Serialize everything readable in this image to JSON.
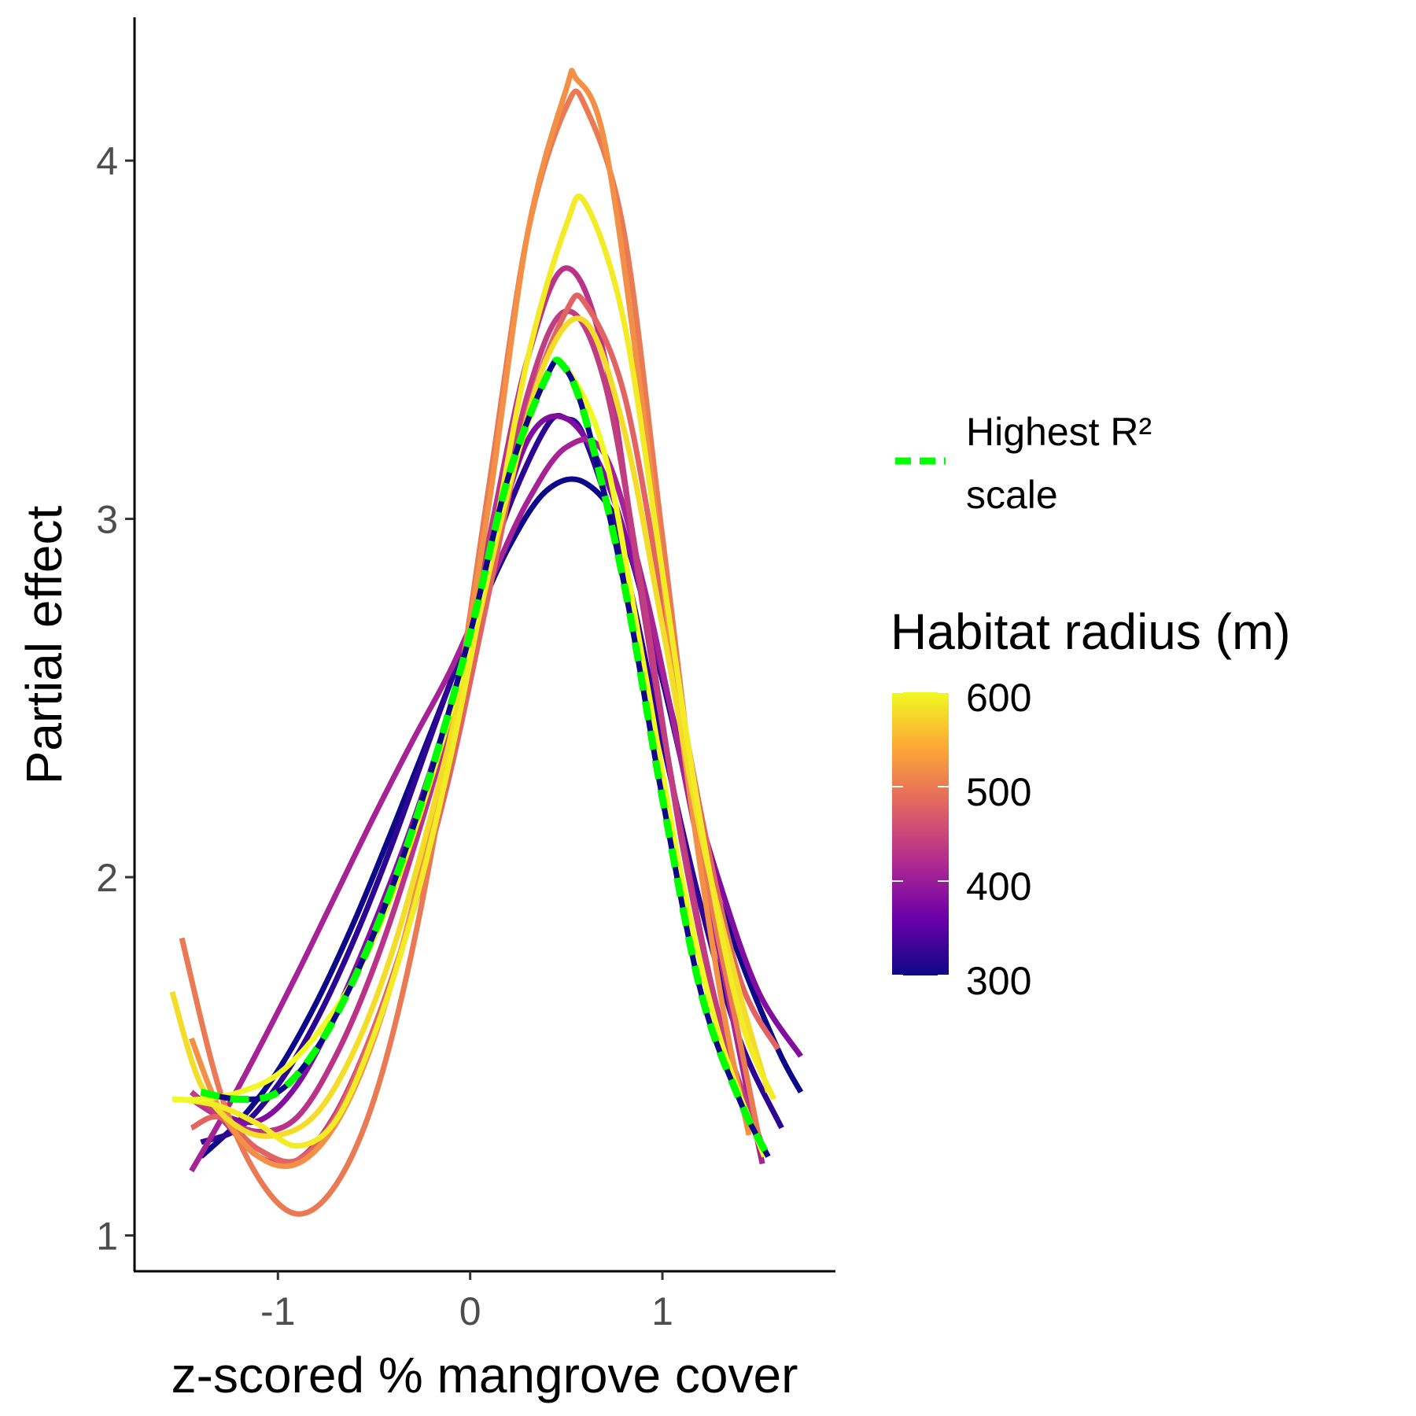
{
  "chart_data": {
    "type": "line",
    "title": "",
    "xlabel": "z-scored % mangrove cover",
    "ylabel": "Partial effect",
    "xlim": [
      -1.75,
      1.9
    ],
    "ylim": [
      0.9,
      4.4
    ],
    "x_ticks": [
      -1,
      0,
      1
    ],
    "x_tick_labels": [
      "-1",
      "0",
      "1"
    ],
    "y_ticks": [
      1,
      2,
      3,
      4
    ],
    "y_tick_labels": [
      "1",
      "2",
      "3",
      "4"
    ],
    "grid": false,
    "series": [
      {
        "radius": 300,
        "style": "solid",
        "x": [
          -1.4,
          -1.2,
          -1.0,
          -0.8,
          -0.6,
          -0.4,
          -0.2,
          0.0,
          0.2,
          0.4,
          0.6,
          0.8,
          1.0,
          1.2,
          1.4,
          1.6,
          1.72
        ],
        "y": [
          1.22,
          1.32,
          1.46,
          1.65,
          1.88,
          2.14,
          2.41,
          2.68,
          2.92,
          3.08,
          3.1,
          2.95,
          2.55,
          2.1,
          1.78,
          1.52,
          1.4
        ]
      },
      {
        "radius": 320,
        "style": "solid",
        "x": [
          -1.4,
          -1.2,
          -1.0,
          -0.8,
          -0.6,
          -0.4,
          -0.2,
          0.0,
          0.2,
          0.4,
          0.5,
          0.6,
          0.8,
          1.0,
          1.2,
          1.4,
          1.62
        ],
        "y": [
          1.26,
          1.3,
          1.42,
          1.6,
          1.83,
          2.1,
          2.4,
          2.7,
          3.03,
          3.26,
          3.28,
          3.22,
          2.88,
          2.38,
          1.92,
          1.55,
          1.3
        ]
      },
      {
        "radius": 380,
        "style": "solid",
        "x": [
          -1.45,
          -1.3,
          -1.1,
          -0.9,
          -0.7,
          -0.5,
          -0.3,
          -0.1,
          0.1,
          0.3,
          0.5,
          0.7,
          0.9,
          1.1,
          1.3,
          1.5,
          1.72
        ],
        "y": [
          1.4,
          1.34,
          1.32,
          1.42,
          1.62,
          1.87,
          2.15,
          2.48,
          2.88,
          3.22,
          3.28,
          3.12,
          2.78,
          2.35,
          1.98,
          1.68,
          1.5
        ]
      },
      {
        "radius": 410,
        "style": "solid",
        "x": [
          -1.45,
          -1.3,
          -1.1,
          -0.9,
          -0.7,
          -0.5,
          -0.3,
          -0.1,
          0.1,
          0.3,
          0.5,
          0.7,
          0.9,
          1.1,
          1.3,
          1.45,
          1.52
        ],
        "y": [
          1.18,
          1.32,
          1.52,
          1.73,
          1.95,
          2.17,
          2.38,
          2.58,
          2.82,
          3.05,
          3.2,
          3.18,
          2.82,
          2.32,
          1.78,
          1.38,
          1.2
        ]
      },
      {
        "radius": 430,
        "style": "solid",
        "x": [
          -1.45,
          -1.3,
          -1.1,
          -0.9,
          -0.7,
          -0.5,
          -0.3,
          -0.1,
          0.1,
          0.3,
          0.5,
          0.7,
          0.9,
          1.1,
          1.3,
          1.52
        ],
        "y": [
          1.38,
          1.33,
          1.29,
          1.33,
          1.5,
          1.75,
          2.07,
          2.45,
          2.95,
          3.45,
          3.7,
          3.45,
          2.75,
          2.12,
          1.6,
          1.25
        ]
      },
      {
        "radius": 440,
        "style": "solid",
        "x": [
          -1.45,
          -1.3,
          -1.1,
          -0.9,
          -0.7,
          -0.5,
          -0.3,
          -0.1,
          0.1,
          0.3,
          0.5,
          0.7,
          0.9,
          1.1,
          1.3,
          1.53
        ],
        "y": [
          1.4,
          1.33,
          1.22,
          1.21,
          1.34,
          1.58,
          1.9,
          2.32,
          2.84,
          3.35,
          3.58,
          3.38,
          2.78,
          2.1,
          1.6,
          1.22
        ]
      },
      {
        "radius": 480,
        "style": "solid",
        "x": [
          -1.45,
          -1.3,
          -1.1,
          -0.9,
          -0.7,
          -0.5,
          -0.3,
          -0.1,
          0.1,
          0.3,
          0.5,
          0.6,
          0.8,
          1.0,
          1.2,
          1.4,
          1.6
        ],
        "y": [
          1.3,
          1.33,
          1.24,
          1.21,
          1.33,
          1.58,
          1.9,
          2.3,
          2.8,
          3.3,
          3.58,
          3.6,
          3.35,
          2.78,
          2.18,
          1.72,
          1.52
        ]
      },
      {
        "radius": 500,
        "style": "solid",
        "x": [
          -1.5,
          -1.3,
          -1.1,
          -0.9,
          -0.7,
          -0.5,
          -0.3,
          -0.1,
          0.1,
          0.3,
          0.5,
          0.6,
          0.8,
          1.0,
          1.2,
          1.4,
          1.5
        ],
        "y": [
          1.83,
          1.4,
          1.16,
          1.06,
          1.14,
          1.38,
          1.8,
          2.38,
          3.1,
          3.8,
          4.15,
          4.15,
          3.8,
          2.95,
          2.1,
          1.55,
          1.28
        ]
      },
      {
        "radius": 520,
        "style": "solid",
        "x": [
          -1.45,
          -1.3,
          -1.1,
          -0.9,
          -0.7,
          -0.5,
          -0.3,
          -0.1,
          0.1,
          0.3,
          0.5,
          0.55,
          0.7,
          0.9,
          1.1,
          1.3,
          1.45
        ],
        "y": [
          1.55,
          1.35,
          1.22,
          1.2,
          1.31,
          1.55,
          1.92,
          2.4,
          3.05,
          3.8,
          4.2,
          4.23,
          4.05,
          3.3,
          2.4,
          1.68,
          1.28
        ]
      },
      {
        "radius": 580,
        "style": "solid",
        "x": [
          -1.55,
          -1.4,
          -1.2,
          -1.0,
          -0.8,
          -0.6,
          -0.4,
          -0.2,
          0.0,
          0.2,
          0.4,
          0.6,
          0.8,
          1.0,
          1.2,
          1.4,
          1.55
        ],
        "y": [
          1.68,
          1.42,
          1.3,
          1.28,
          1.34,
          1.52,
          1.8,
          2.18,
          2.62,
          3.08,
          3.45,
          3.55,
          3.25,
          2.7,
          2.12,
          1.68,
          1.4
        ]
      },
      {
        "radius": 590,
        "style": "solid",
        "x": [
          -1.5,
          -1.3,
          -1.1,
          -0.9,
          -0.7,
          -0.5,
          -0.3,
          -0.1,
          0.1,
          0.3,
          0.5,
          0.6,
          0.8,
          1.0,
          1.2,
          1.4,
          1.58
        ],
        "y": [
          1.38,
          1.36,
          1.31,
          1.25,
          1.32,
          1.56,
          1.9,
          2.34,
          2.88,
          3.45,
          3.82,
          3.88,
          3.55,
          2.85,
          2.15,
          1.62,
          1.38
        ]
      },
      {
        "radius": 600,
        "style": "solid",
        "x": [
          -1.55,
          -1.4,
          -1.2,
          -1.0,
          -0.8,
          -0.6,
          -0.4,
          -0.2,
          0.0,
          0.2,
          0.4,
          0.5,
          0.7,
          0.9,
          1.1,
          1.3,
          1.53
        ],
        "y": [
          1.38,
          1.38,
          1.4,
          1.45,
          1.56,
          1.72,
          1.96,
          2.28,
          2.66,
          3.1,
          3.4,
          3.42,
          3.18,
          2.6,
          2.0,
          1.55,
          1.22
        ]
      },
      {
        "radius": 300,
        "style": "dashed",
        "name": "Highest R² scale",
        "x": [
          -1.4,
          -1.2,
          -1.0,
          -0.8,
          -0.6,
          -0.4,
          -0.2,
          0.0,
          0.2,
          0.4,
          0.48,
          0.6,
          0.8,
          1.0,
          1.2,
          1.4,
          1.55
        ],
        "y": [
          1.4,
          1.38,
          1.4,
          1.52,
          1.72,
          1.98,
          2.3,
          2.68,
          3.12,
          3.4,
          3.43,
          3.28,
          2.82,
          2.22,
          1.68,
          1.38,
          1.22
        ]
      }
    ],
    "legend": {
      "line_key_color": "#00ff00",
      "line_key_label_line1": "Highest R²",
      "line_key_label_line2": "scale",
      "colorbar_title": "Habitat radius (m)",
      "colorbar_ticks": [
        300,
        400,
        500,
        600
      ],
      "colorbar_tick_labels": [
        "300",
        "400",
        "500",
        "600"
      ],
      "colorbar_colors": [
        "#0d0887",
        "#6a00a8",
        "#b12a90",
        "#e16462",
        "#fca636",
        "#f0f921"
      ],
      "placement": "right"
    }
  }
}
